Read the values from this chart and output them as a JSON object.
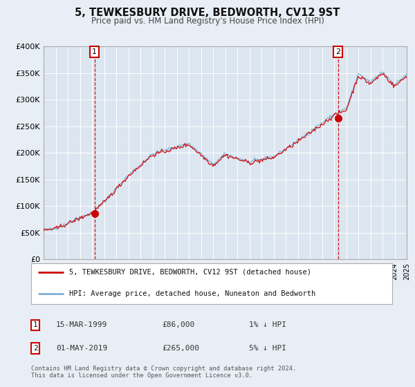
{
  "title": "5, TEWKESBURY DRIVE, BEDWORTH, CV12 9ST",
  "subtitle": "Price paid vs. HM Land Registry's House Price Index (HPI)",
  "bg_color": "#e8eef5",
  "plot_bg_color": "#dce6f0",
  "grid_color": "#ffffff",
  "red_line_color": "#cc0000",
  "blue_line_color": "#7bafd4",
  "marker1_t": 1999.208,
  "marker1_value": 86000,
  "marker2_t": 2019.333,
  "marker2_value": 265000,
  "legend_entries": [
    "5, TEWKESBURY DRIVE, BEDWORTH, CV12 9ST (detached house)",
    "HPI: Average price, detached house, Nuneaton and Bedworth"
  ],
  "annotation1": [
    "1",
    "15-MAR-1999",
    "£86,000",
    "1% ↓ HPI"
  ],
  "annotation2": [
    "2",
    "01-MAY-2019",
    "£265,000",
    "5% ↓ HPI"
  ],
  "footer": "Contains HM Land Registry data © Crown copyright and database right 2024.\nThis data is licensed under the Open Government Licence v3.0.",
  "ylim": [
    0,
    400000
  ],
  "yticks": [
    0,
    50000,
    100000,
    150000,
    200000,
    250000,
    300000,
    350000,
    400000
  ],
  "ytick_labels": [
    "£0",
    "£50K",
    "£100K",
    "£150K",
    "£200K",
    "£250K",
    "£300K",
    "£350K",
    "£400K"
  ],
  "start_year": 1995,
  "end_year": 2025
}
